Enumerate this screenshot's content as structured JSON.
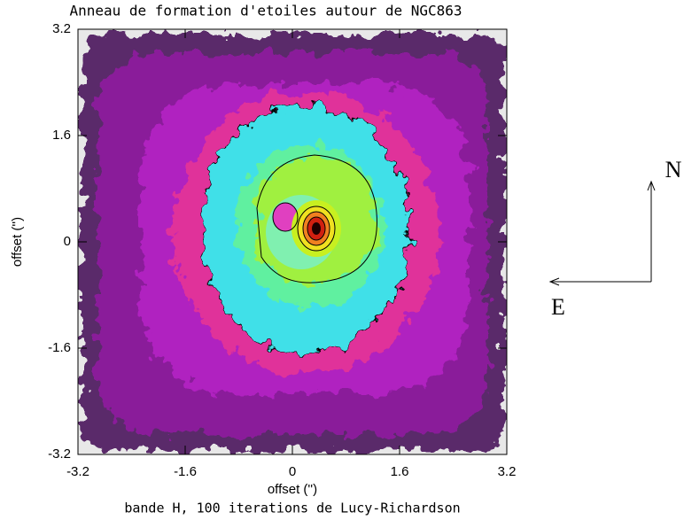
{
  "chart_data": {
    "type": "image",
    "title": "Anneau de formation d'etoiles autour de NGC863",
    "subtitle": "bande H, 100 iterations de Lucy-Richardson",
    "xlabel": "offset ('')",
    "ylabel": "offset ('')",
    "xlim": [
      -3.2,
      3.2
    ],
    "ylim": [
      -3.2,
      3.2
    ],
    "xticks": [
      -3.2,
      -1.6,
      0,
      1.6,
      3.2
    ],
    "yticks": [
      -3.2,
      -1.6,
      0,
      1.6,
      3.2
    ],
    "annotations": [
      "N",
      "E"
    ]
  }
}
